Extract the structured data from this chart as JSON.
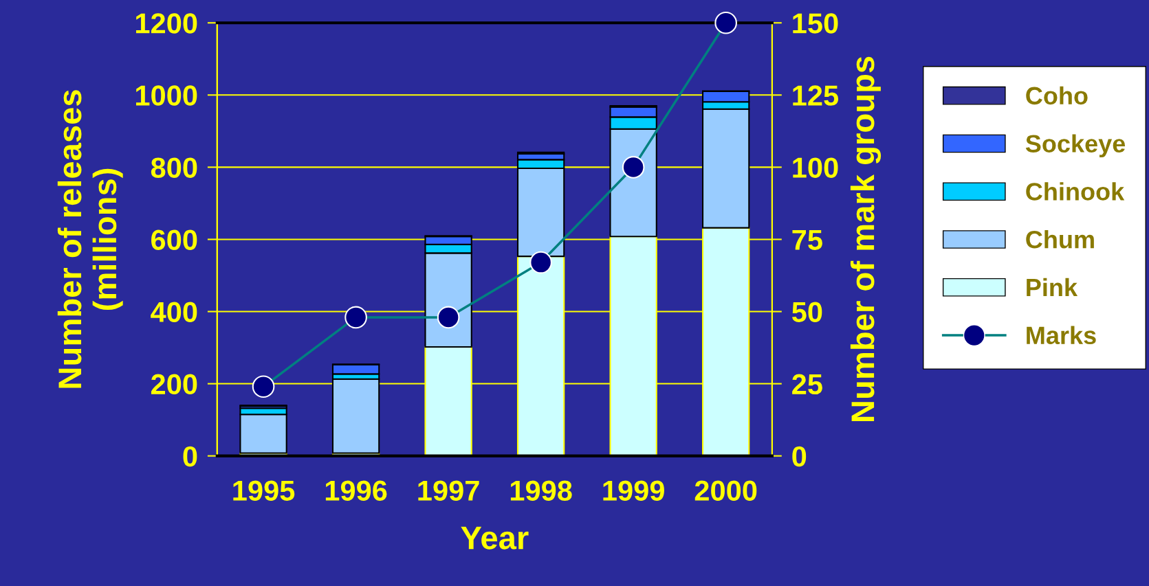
{
  "chart_data": {
    "type": "bar",
    "stacked": true,
    "xlabel": "Year",
    "ylabel": "Number of releases\n(millions)",
    "y2label": "Number of mark groups",
    "categories": [
      "1995",
      "1996",
      "1997",
      "1998",
      "1999",
      "2000"
    ],
    "series": [
      {
        "name": "Pink",
        "color": "#ccffff",
        "values": [
          8,
          8,
          302,
          553,
          608,
          632
        ]
      },
      {
        "name": "Chum",
        "color": "#99ccff",
        "values": [
          107,
          205,
          260,
          244,
          298,
          329
        ]
      },
      {
        "name": "Chinook",
        "color": "#00ccff",
        "values": [
          17,
          14,
          24,
          24,
          33,
          20
        ]
      },
      {
        "name": "Sockeye",
        "color": "#3366ff",
        "values": [
          6,
          26,
          22,
          16,
          28,
          29
        ]
      },
      {
        "name": "Coho",
        "color": "#333399",
        "values": [
          2,
          1,
          2,
          4,
          3,
          1
        ]
      },
      {
        "name": "Marks",
        "type": "line",
        "axis": "y2",
        "color": "#008080",
        "marker": "circle",
        "values": [
          24,
          48,
          48,
          67,
          100,
          150
        ]
      }
    ],
    "ylim": [
      0,
      1200
    ],
    "yticks": [
      0,
      200,
      400,
      600,
      800,
      1000,
      1200
    ],
    "y2lim": [
      0,
      150
    ],
    "y2ticks": [
      0,
      25,
      50,
      75,
      100,
      125,
      150
    ],
    "grid": "y",
    "legend": "right"
  }
}
